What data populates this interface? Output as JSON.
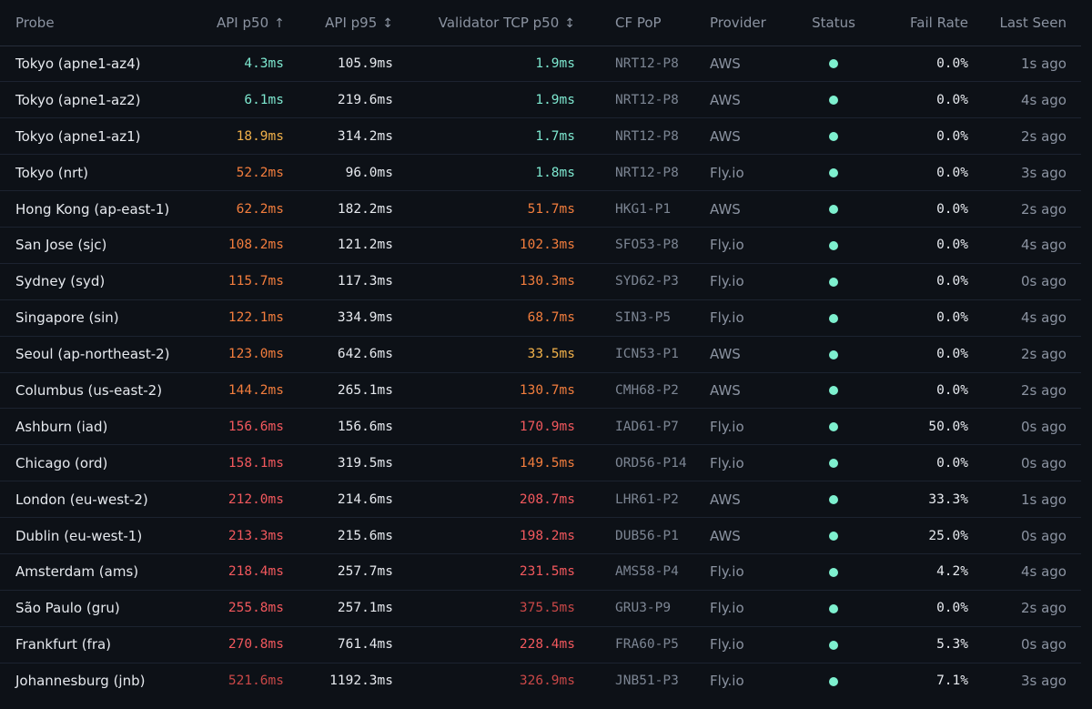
{
  "colors": {
    "background": "#0d1117",
    "status_ok": "#7ef0cf",
    "latency_green": "#7ee8d0",
    "latency_yellow": "#f1b14a",
    "latency_orange": "#f27d3d",
    "latency_red": "#f2585d",
    "latency_darkred": "#c84747"
  },
  "table": {
    "headers": {
      "probe": "Probe",
      "api_p50": "API p50",
      "api_p50_sort_icon": "↑",
      "api_p95": "API p95",
      "api_p95_sort_icon": "↕",
      "tcp_p50": "Validator TCP p50",
      "tcp_p50_sort_icon": "↕",
      "cf_pop": "CF PoP",
      "provider": "Provider",
      "status": "Status",
      "fail_rate": "Fail Rate",
      "last_seen": "Last Seen"
    },
    "rows": [
      {
        "probe": "Tokyo (apne1-az4)",
        "api_p50": "4.3ms",
        "api_p50_level": "green",
        "api_p95": "105.9ms",
        "tcp_p50": "1.9ms",
        "tcp_p50_level": "green",
        "cf_pop": "NRT12-P8",
        "provider": "AWS",
        "status": "ok",
        "fail_rate": "0.0%",
        "last_seen": "1s ago"
      },
      {
        "probe": "Tokyo (apne1-az2)",
        "api_p50": "6.1ms",
        "api_p50_level": "green",
        "api_p95": "219.6ms",
        "tcp_p50": "1.9ms",
        "tcp_p50_level": "green",
        "cf_pop": "NRT12-P8",
        "provider": "AWS",
        "status": "ok",
        "fail_rate": "0.0%",
        "last_seen": "4s ago"
      },
      {
        "probe": "Tokyo (apne1-az1)",
        "api_p50": "18.9ms",
        "api_p50_level": "yellow",
        "api_p95": "314.2ms",
        "tcp_p50": "1.7ms",
        "tcp_p50_level": "green",
        "cf_pop": "NRT12-P8",
        "provider": "AWS",
        "status": "ok",
        "fail_rate": "0.0%",
        "last_seen": "2s ago"
      },
      {
        "probe": "Tokyo (nrt)",
        "api_p50": "52.2ms",
        "api_p50_level": "orange",
        "api_p95": "96.0ms",
        "tcp_p50": "1.8ms",
        "tcp_p50_level": "green",
        "cf_pop": "NRT12-P8",
        "provider": "Fly.io",
        "status": "ok",
        "fail_rate": "0.0%",
        "last_seen": "3s ago"
      },
      {
        "probe": "Hong Kong (ap-east-1)",
        "api_p50": "62.2ms",
        "api_p50_level": "orange",
        "api_p95": "182.2ms",
        "tcp_p50": "51.7ms",
        "tcp_p50_level": "orange",
        "cf_pop": "HKG1-P1",
        "provider": "AWS",
        "status": "ok",
        "fail_rate": "0.0%",
        "last_seen": "2s ago"
      },
      {
        "probe": "San Jose (sjc)",
        "api_p50": "108.2ms",
        "api_p50_level": "orange",
        "api_p95": "121.2ms",
        "tcp_p50": "102.3ms",
        "tcp_p50_level": "orange",
        "cf_pop": "SFO53-P8",
        "provider": "Fly.io",
        "status": "ok",
        "fail_rate": "0.0%",
        "last_seen": "4s ago"
      },
      {
        "probe": "Sydney (syd)",
        "api_p50": "115.7ms",
        "api_p50_level": "orange",
        "api_p95": "117.3ms",
        "tcp_p50": "130.3ms",
        "tcp_p50_level": "orange",
        "cf_pop": "SYD62-P3",
        "provider": "Fly.io",
        "status": "ok",
        "fail_rate": "0.0%",
        "last_seen": "0s ago"
      },
      {
        "probe": "Singapore (sin)",
        "api_p50": "122.1ms",
        "api_p50_level": "orange",
        "api_p95": "334.9ms",
        "tcp_p50": "68.7ms",
        "tcp_p50_level": "orange",
        "cf_pop": "SIN3-P5",
        "provider": "Fly.io",
        "status": "ok",
        "fail_rate": "0.0%",
        "last_seen": "4s ago"
      },
      {
        "probe": "Seoul (ap-northeast-2)",
        "api_p50": "123.0ms",
        "api_p50_level": "orange",
        "api_p95": "642.6ms",
        "tcp_p50": "33.5ms",
        "tcp_p50_level": "yellow",
        "cf_pop": "ICN53-P1",
        "provider": "AWS",
        "status": "ok",
        "fail_rate": "0.0%",
        "last_seen": "2s ago"
      },
      {
        "probe": "Columbus (us-east-2)",
        "api_p50": "144.2ms",
        "api_p50_level": "orange",
        "api_p95": "265.1ms",
        "tcp_p50": "130.7ms",
        "tcp_p50_level": "orange",
        "cf_pop": "CMH68-P2",
        "provider": "AWS",
        "status": "ok",
        "fail_rate": "0.0%",
        "last_seen": "2s ago"
      },
      {
        "probe": "Ashburn (iad)",
        "api_p50": "156.6ms",
        "api_p50_level": "red",
        "api_p95": "156.6ms",
        "tcp_p50": "170.9ms",
        "tcp_p50_level": "red",
        "cf_pop": "IAD61-P7",
        "provider": "Fly.io",
        "status": "ok",
        "fail_rate": "50.0%",
        "last_seen": "0s ago"
      },
      {
        "probe": "Chicago (ord)",
        "api_p50": "158.1ms",
        "api_p50_level": "red",
        "api_p95": "319.5ms",
        "tcp_p50": "149.5ms",
        "tcp_p50_level": "orange",
        "cf_pop": "ORD56-P14",
        "provider": "Fly.io",
        "status": "ok",
        "fail_rate": "0.0%",
        "last_seen": "0s ago"
      },
      {
        "probe": "London (eu-west-2)",
        "api_p50": "212.0ms",
        "api_p50_level": "red",
        "api_p95": "214.6ms",
        "tcp_p50": "208.7ms",
        "tcp_p50_level": "red",
        "cf_pop": "LHR61-P2",
        "provider": "AWS",
        "status": "ok",
        "fail_rate": "33.3%",
        "last_seen": "1s ago"
      },
      {
        "probe": "Dublin (eu-west-1)",
        "api_p50": "213.3ms",
        "api_p50_level": "red",
        "api_p95": "215.6ms",
        "tcp_p50": "198.2ms",
        "tcp_p50_level": "red",
        "cf_pop": "DUB56-P1",
        "provider": "AWS",
        "status": "ok",
        "fail_rate": "25.0%",
        "last_seen": "0s ago"
      },
      {
        "probe": "Amsterdam (ams)",
        "api_p50": "218.4ms",
        "api_p50_level": "red",
        "api_p95": "257.7ms",
        "tcp_p50": "231.5ms",
        "tcp_p50_level": "red",
        "cf_pop": "AMS58-P4",
        "provider": "Fly.io",
        "status": "ok",
        "fail_rate": "4.2%",
        "last_seen": "4s ago"
      },
      {
        "probe": "São Paulo (gru)",
        "api_p50": "255.8ms",
        "api_p50_level": "red",
        "api_p95": "257.1ms",
        "tcp_p50": "375.5ms",
        "tcp_p50_level": "darkred",
        "cf_pop": "GRU3-P9",
        "provider": "Fly.io",
        "status": "ok",
        "fail_rate": "0.0%",
        "last_seen": "2s ago"
      },
      {
        "probe": "Frankfurt (fra)",
        "api_p50": "270.8ms",
        "api_p50_level": "red",
        "api_p95": "761.4ms",
        "tcp_p50": "228.4ms",
        "tcp_p50_level": "red",
        "cf_pop": "FRA60-P5",
        "provider": "Fly.io",
        "status": "ok",
        "fail_rate": "5.3%",
        "last_seen": "0s ago"
      },
      {
        "probe": "Johannesburg (jnb)",
        "api_p50": "521.6ms",
        "api_p50_level": "darkred",
        "api_p95": "1192.3ms",
        "tcp_p50": "326.9ms",
        "tcp_p50_level": "darkred",
        "cf_pop": "JNB51-P3",
        "provider": "Fly.io",
        "status": "ok",
        "fail_rate": "7.1%",
        "last_seen": "3s ago"
      }
    ]
  }
}
